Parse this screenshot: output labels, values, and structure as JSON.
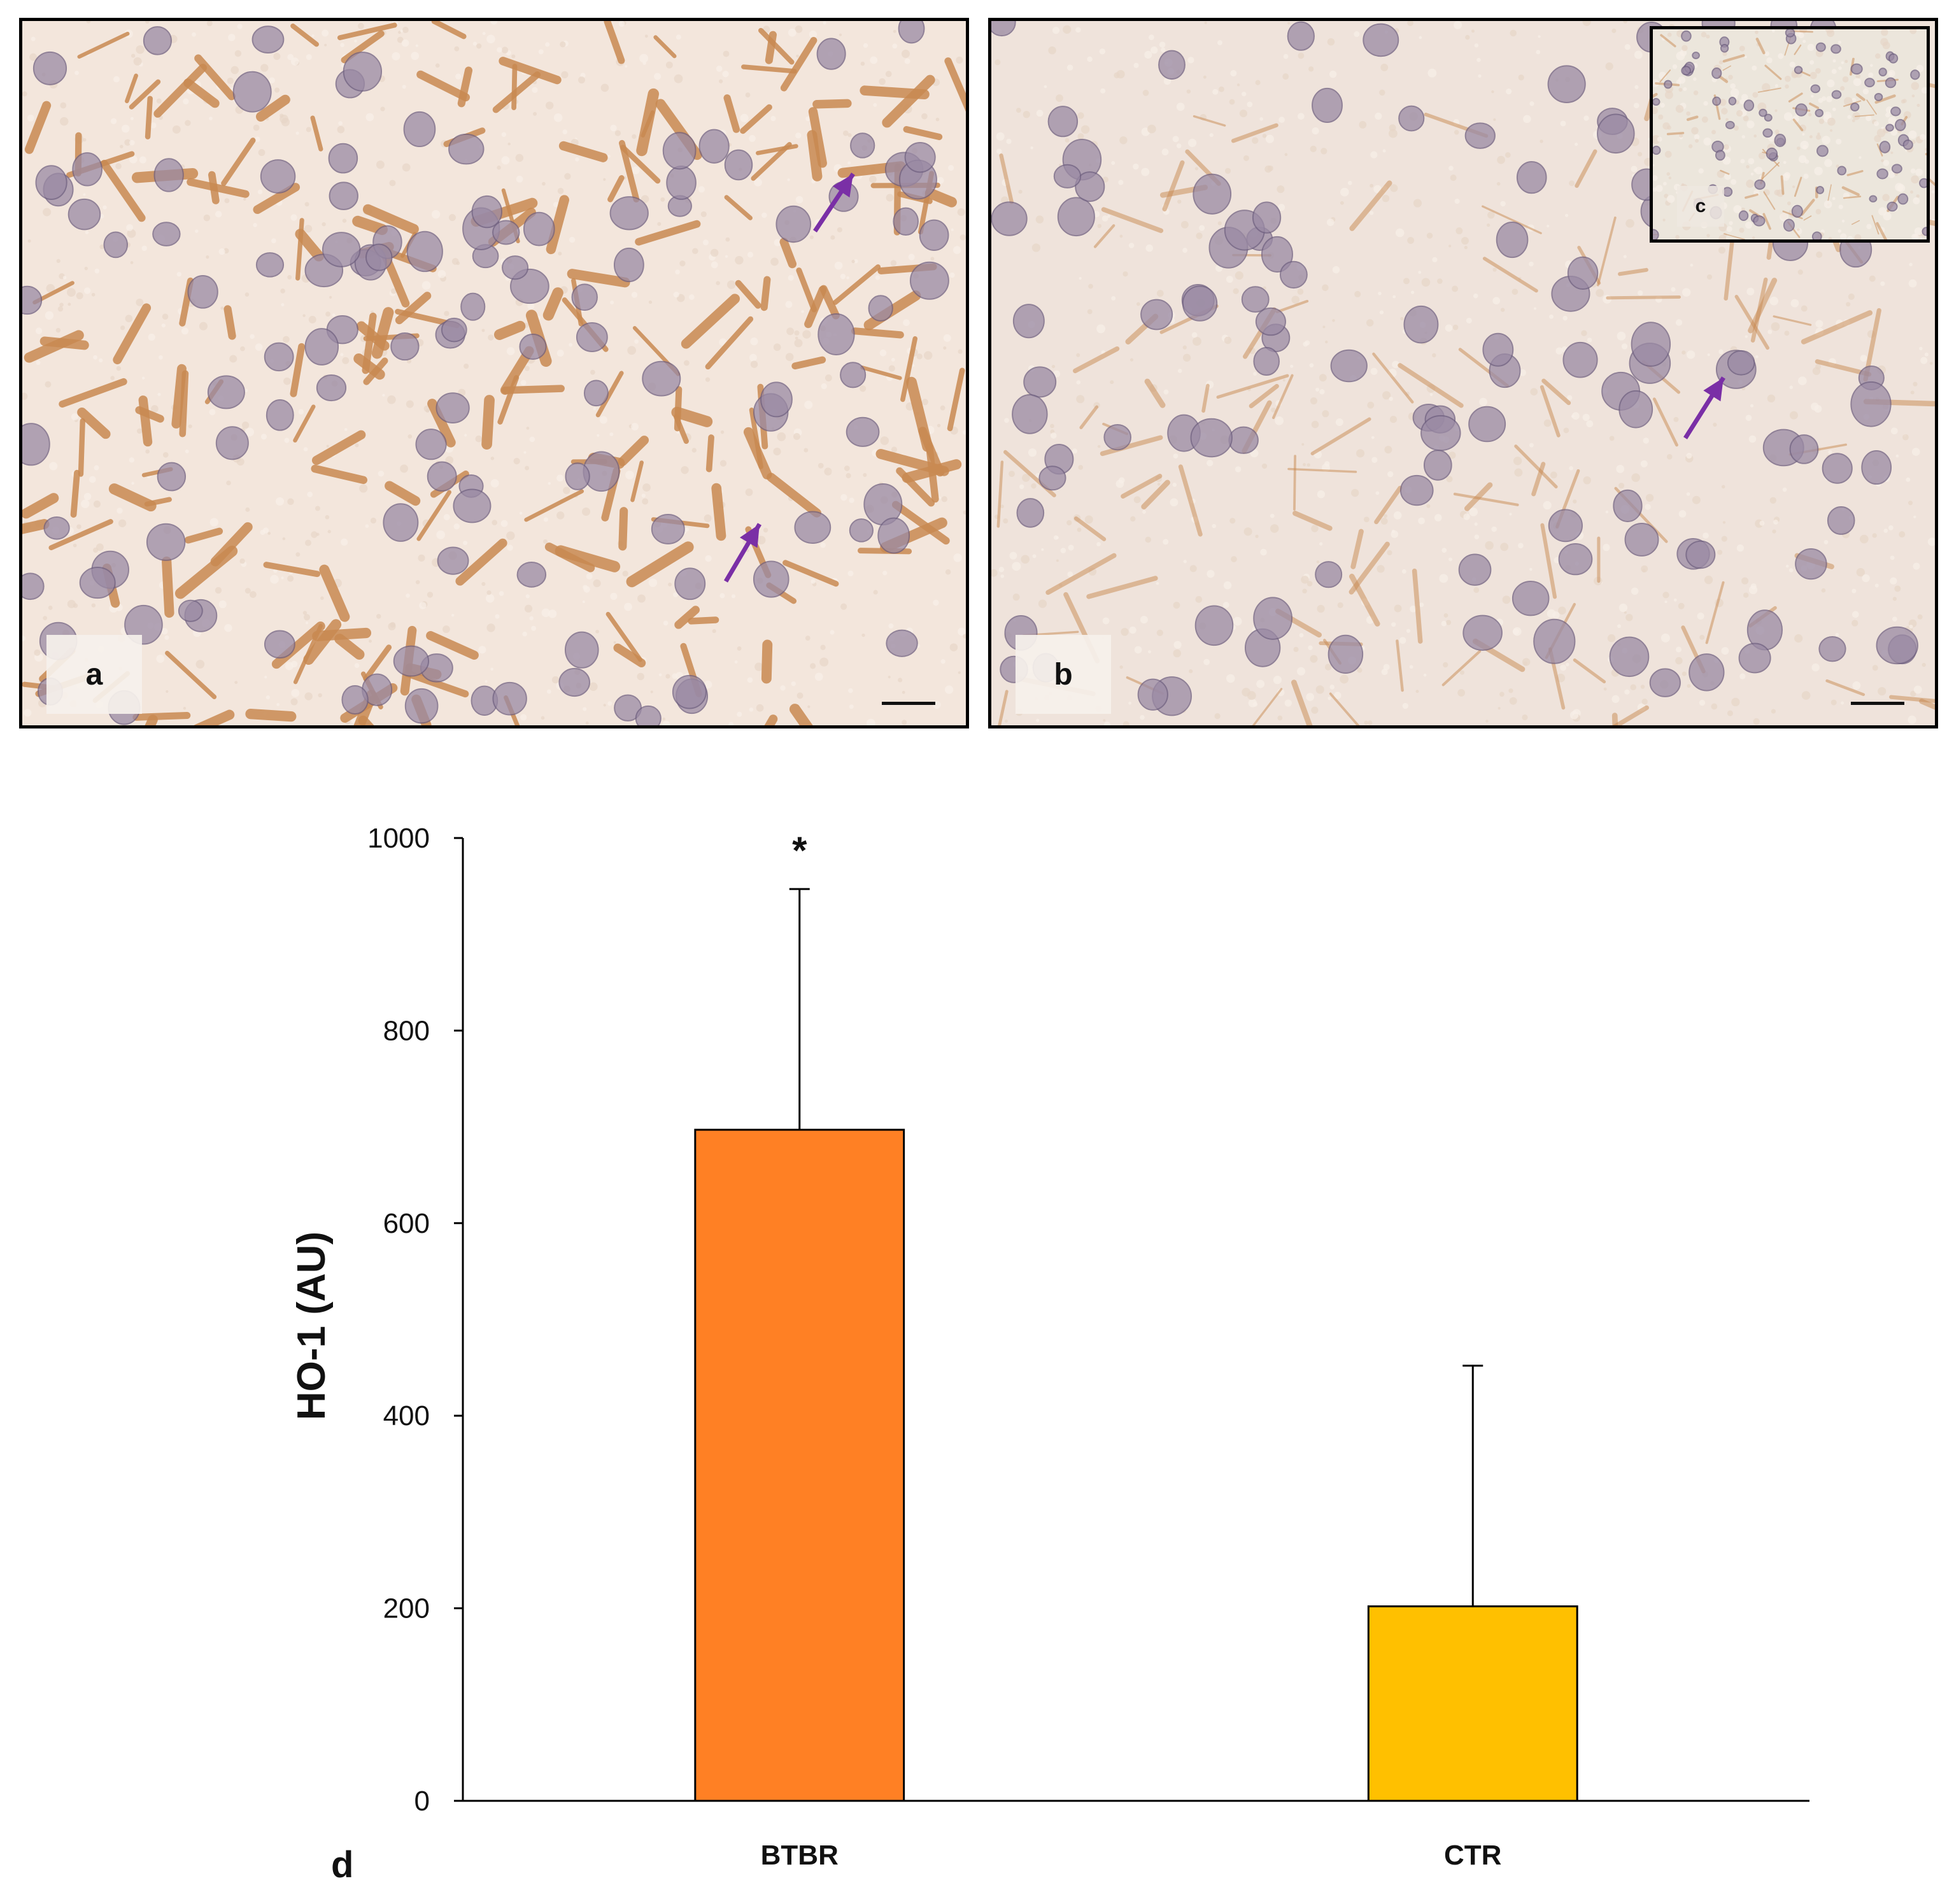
{
  "panels": {
    "a": {
      "label": "a"
    },
    "b": {
      "label": "b",
      "inset_label": "c"
    }
  },
  "figure_label": "d",
  "colors": {
    "tissue": "#f3e6dc",
    "stain": "#c98a52",
    "nucleus": "#9a8aa4",
    "arrow": "#7a2fa6",
    "bar_btbr": "#ff8024",
    "bar_ctr": "#ffc000"
  },
  "chart_data": {
    "type": "bar",
    "categories": [
      "BTBR",
      "CTR"
    ],
    "values": [
      697,
      202
    ],
    "error_plus": [
      250,
      250
    ],
    "ylabel": "HO-1 (AU)",
    "ylim": [
      0,
      1000
    ],
    "yticks": [
      0,
      200,
      400,
      600,
      800,
      1000
    ],
    "annotations": [
      {
        "category": "BTBR",
        "text": "*"
      }
    ],
    "bar_colors": [
      "#ff8024",
      "#ffc000"
    ],
    "grid": false,
    "legend": "none"
  }
}
